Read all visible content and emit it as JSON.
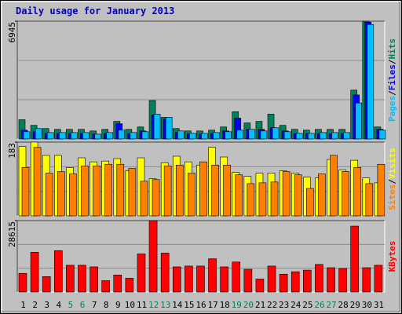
{
  "title": "Daily usage for January 2013",
  "legend_separator": "/",
  "chart_data": [
    {
      "type": "bar",
      "ylim": [
        0,
        6945
      ],
      "yticks": [
        6945
      ],
      "series": [
        {
          "name": "Hits",
          "color": "#00805c",
          "values": [
            1133,
            802,
            614,
            566,
            566,
            566,
            472,
            566,
            1038,
            566,
            708,
            2266,
            1274,
            614,
            472,
            472,
            519,
            708,
            1605,
            944,
            1038,
            1463,
            802,
            566,
            519,
            566,
            566,
            566,
            2880,
            6945,
            708
          ]
        },
        {
          "name": "Files",
          "color": "#0000ff",
          "values": [
            519,
            425,
            330,
            330,
            330,
            330,
            283,
            330,
            897,
            330,
            472,
            1416,
            1180,
            378,
            283,
            283,
            330,
            472,
            1227,
            566,
            566,
            661,
            472,
            330,
            330,
            330,
            330,
            330,
            2596,
            6891,
            566
          ]
        },
        {
          "name": "Pages",
          "color": "#00c0ff",
          "values": [
            425,
            614,
            378,
            378,
            378,
            378,
            283,
            378,
            519,
            378,
            425,
            1463,
            1274,
            472,
            330,
            330,
            378,
            425,
            519,
            566,
            472,
            661,
            425,
            330,
            330,
            378,
            378,
            378,
            2124,
            6750,
            519
          ]
        }
      ]
    },
    {
      "type": "bar",
      "ylim": [
        0,
        183
      ],
      "yticks": [
        183
      ],
      "series": [
        {
          "name": "Visits",
          "color": "#ffff00",
          "values": [
            172,
            183,
            150,
            150,
            120,
            144,
            134,
            136,
            142,
            112,
            144,
            92,
            132,
            148,
            134,
            126,
            170,
            146,
            108,
            98,
            106,
            106,
            112,
            106,
            96,
            94,
            140,
            114,
            138,
            94,
            82
          ]
        },
        {
          "name": "Sites",
          "color": "#ff8000",
          "values": [
            120,
            170,
            106,
            110,
            104,
            124,
            124,
            128,
            128,
            118,
            86,
            90,
            124,
            126,
            106,
            134,
            126,
            126,
            102,
            80,
            82,
            84,
            110,
            102,
            68,
            104,
            150,
            110,
            120,
            80,
            128
          ]
        }
      ]
    },
    {
      "type": "bar",
      "ylim": [
        0,
        28615
      ],
      "yticks": [
        28615
      ],
      "categories": [
        "1",
        "2",
        "3",
        "4",
        "5",
        "6",
        "7",
        "8",
        "9",
        "10",
        "11",
        "12",
        "13",
        "14",
        "15",
        "16",
        "17",
        "18",
        "19",
        "20",
        "21",
        "22",
        "23",
        "24",
        "25",
        "26",
        "27",
        "28",
        "29",
        "30",
        "31"
      ],
      "label_colors": [
        "#000000",
        "#000000",
        "#000000",
        "#000000",
        "#008060",
        "#008060",
        "#000000",
        "#000000",
        "#000000",
        "#000000",
        "#000000",
        "#008060",
        "#008060",
        "#000000",
        "#000000",
        "#000000",
        "#000000",
        "#000000",
        "#008060",
        "#008060",
        "#000000",
        "#000000",
        "#000000",
        "#000000",
        "#000000",
        "#008060",
        "#008060",
        "#000000",
        "#000000",
        "#000000",
        "#000000"
      ],
      "series": [
        {
          "name": "KBytes",
          "color": "#ff0000",
          "values": [
            7475,
            15925,
            6175,
            16575,
            10725,
            10725,
            10075,
            4550,
            6825,
            5525,
            15275,
            28615,
            15600,
            10075,
            10400,
            10400,
            13325,
            10075,
            12025,
            9100,
            5200,
            10400,
            7150,
            8125,
            8775,
            11050,
            9750,
            9425,
            26400,
            9750,
            10725
          ]
        }
      ]
    }
  ]
}
